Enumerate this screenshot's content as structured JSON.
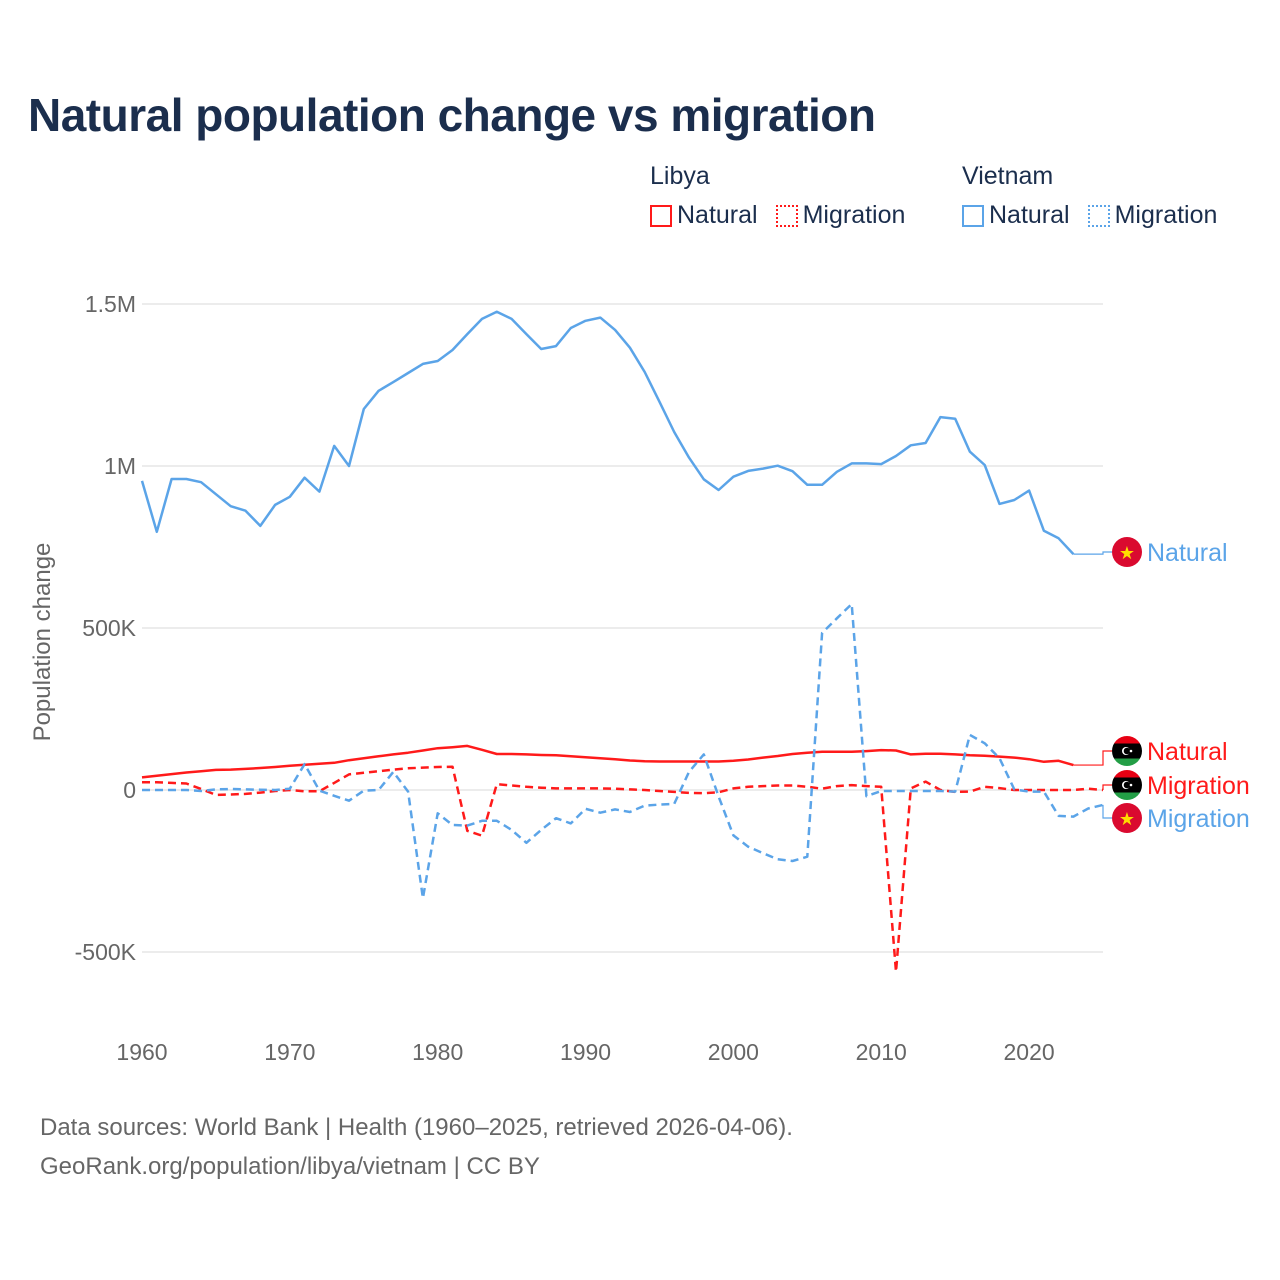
{
  "title": "Natural population change vs migration",
  "legend": {
    "groups": [
      {
        "name": "Libya",
        "items": [
          {
            "label": "Natural",
            "style": "solid"
          },
          {
            "label": "Migration",
            "style": "dotted"
          }
        ],
        "color": "#ff1a1a"
      },
      {
        "name": "Vietnam",
        "items": [
          {
            "label": "Natural",
            "style": "solid"
          },
          {
            "label": "Migration",
            "style": "dotted"
          }
        ],
        "color": "#5ba4e8"
      }
    ]
  },
  "footer": {
    "line1": "Data sources: World Bank | Health (1960–2025, retrieved 2026-04-06).",
    "line2": "GeoRank.org/population/libya/vietnam | CC BY"
  },
  "chart_data": {
    "type": "line",
    "title": "Natural population change vs migration",
    "xlabel": "",
    "ylabel": "Population change",
    "value_unit": "thousands",
    "xlim": [
      1960,
      2025
    ],
    "ylim": [
      -650,
      1600
    ],
    "x_ticks": [
      1960,
      1970,
      1980,
      1990,
      2000,
      2010,
      2020
    ],
    "y_ticks": [
      {
        "value": -500,
        "label": "-500K"
      },
      {
        "value": 0,
        "label": "0"
      },
      {
        "value": 500,
        "label": "500K"
      },
      {
        "value": 1000,
        "label": "1M"
      },
      {
        "value": 1500,
        "label": "1.5M"
      }
    ],
    "grid": true,
    "legend_position": "top-right",
    "series": [
      {
        "name": "Vietnam Natural",
        "country": "Vietnam",
        "label": "Natural",
        "color": "#5ba4e8",
        "dashed": false,
        "flag": "vietnam-flag",
        "start": 1960,
        "values": [
          954,
          797,
          960,
          960,
          950,
          913,
          876,
          862,
          815,
          880,
          905,
          964,
          921,
          1062,
          1000,
          1176,
          1232,
          1259,
          1287,
          1315,
          1324,
          1358,
          1407,
          1454,
          1476,
          1454,
          1407,
          1361,
          1370,
          1426,
          1448,
          1458,
          1420,
          1365,
          1290,
          1198,
          1105,
          1026,
          959,
          926,
          967,
          985,
          992,
          1001,
          984,
          942,
          942,
          982,
          1008,
          1008,
          1006,
          1031,
          1064,
          1071,
          1151,
          1146,
          1044,
          1003,
          883,
          895,
          924,
          800,
          777,
          728
        ]
      },
      {
        "name": "Libya Natural",
        "country": "Libya",
        "label": "Natural",
        "color": "#ff1a1a",
        "dashed": false,
        "flag": "libya-flag",
        "start": 1960,
        "values": [
          39,
          44,
          49,
          54,
          58,
          62,
          63,
          65,
          68,
          71,
          75,
          78,
          81,
          84,
          92,
          98,
          104,
          110,
          115,
          122,
          129,
          132,
          136,
          124,
          111,
          111,
          110,
          108,
          107,
          104,
          101,
          98,
          95,
          91,
          89,
          88,
          88,
          88,
          88,
          88,
          90,
          94,
          100,
          105,
          111,
          115,
          118,
          118,
          118,
          120,
          123,
          122,
          110,
          112,
          112,
          110,
          107,
          106,
          103,
          100,
          95,
          87,
          90,
          77
        ]
      },
      {
        "name": "Libya Migration",
        "country": "Libya",
        "label": "Migration",
        "color": "#ff1a1a",
        "dashed": true,
        "flag": "libya-flag",
        "start": 1960,
        "values": [
          24,
          24,
          22,
          20,
          3,
          -15,
          -14,
          -12,
          -8,
          -3,
          0,
          -4,
          -4,
          22,
          48,
          53,
          58,
          63,
          67,
          69,
          71,
          72,
          -126,
          -141,
          18,
          14,
          10,
          7,
          5,
          5,
          5,
          5,
          4,
          2,
          0,
          -3,
          -6,
          -9,
          -10,
          -7,
          5,
          10,
          12,
          14,
          14,
          10,
          4,
          12,
          15,
          12,
          10,
          -561,
          5,
          26,
          0,
          -6,
          -5,
          10,
          6,
          0,
          0,
          0,
          0,
          0,
          4,
          0
        ]
      },
      {
        "name": "Vietnam Migration",
        "country": "Vietnam",
        "label": "Migration",
        "color": "#5ba4e8",
        "dashed": true,
        "flag": "vietnam-flag",
        "start": 1960,
        "values": [
          0,
          0,
          0,
          0,
          -3,
          2,
          3,
          2,
          1,
          0,
          4,
          80,
          -2,
          -18,
          -33,
          -2,
          0,
          56,
          -5,
          -334,
          -72,
          -108,
          -110,
          -95,
          -95,
          -123,
          -163,
          -123,
          -87,
          -103,
          -58,
          -70,
          -60,
          -68,
          -48,
          -45,
          -43,
          56,
          110,
          -20,
          -140,
          -175,
          -195,
          -214,
          -219,
          -206,
          485,
          530,
          574,
          -19,
          -3,
          -3,
          -3,
          -3,
          -3,
          -5,
          170,
          144,
          98,
          2,
          -5,
          -5,
          -80,
          -82,
          -57,
          -46
        ]
      }
    ]
  }
}
